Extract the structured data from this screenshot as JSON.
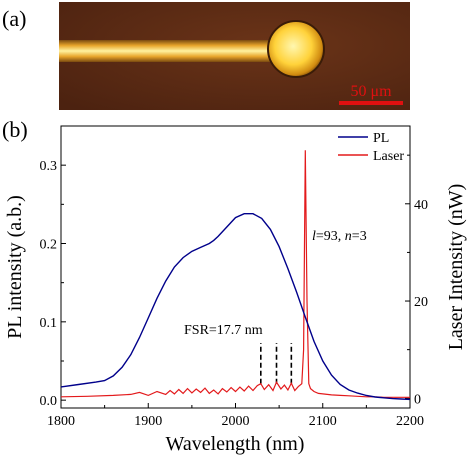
{
  "panel_a": {
    "label": "(a)",
    "scale_bar_label": "50 μm",
    "colors": {
      "background": "#5a2a14",
      "fiber": "#f2b431",
      "sphere": "#ffd23a",
      "scale_bar": "#e01010"
    }
  },
  "panel_b": {
    "label": "(b)"
  },
  "chart_data": {
    "type": "line",
    "title": "",
    "xlabel": "Wavelength (nm)",
    "ylabel_left": "PL intensity (a.b.)",
    "ylabel_right": "Laser Intensity (nW)",
    "xlim": [
      1800,
      2200
    ],
    "ylim_left": [
      -0.01,
      0.35
    ],
    "ylim_right": [
      -2,
      56
    ],
    "x_ticks": [
      1800,
      1900,
      2000,
      2100,
      2200
    ],
    "y_left_ticks": [
      "0.0",
      "0.1",
      "0.2",
      "0.3"
    ],
    "y_right_ticks": [
      "0",
      "20",
      "40"
    ],
    "legend_position": "top-right",
    "annotations": {
      "mode_label_l": "l",
      "mode_label_rest": "=93, ",
      "mode_label_n": "n",
      "mode_label_end": "=3",
      "fsr_label": "FSR=17.7 nm",
      "fsr_lines_x": [
        2029,
        2047,
        2064
      ]
    },
    "series": [
      {
        "name": "PL",
        "axis": "left",
        "color": "#00008b",
        "x": [
          1800,
          1820,
          1840,
          1850,
          1860,
          1870,
          1880,
          1890,
          1900,
          1910,
          1920,
          1930,
          1940,
          1950,
          1960,
          1970,
          1975,
          1980,
          1990,
          2000,
          2010,
          2020,
          2030,
          2040,
          2050,
          2060,
          2070,
          2080,
          2090,
          2100,
          2110,
          2120,
          2130,
          2140,
          2150,
          2160,
          2170,
          2180,
          2190,
          2200
        ],
        "y": [
          0.017,
          0.02,
          0.023,
          0.025,
          0.031,
          0.042,
          0.058,
          0.08,
          0.105,
          0.13,
          0.152,
          0.17,
          0.182,
          0.19,
          0.195,
          0.2,
          0.204,
          0.209,
          0.221,
          0.233,
          0.238,
          0.238,
          0.232,
          0.218,
          0.196,
          0.168,
          0.138,
          0.106,
          0.075,
          0.05,
          0.032,
          0.02,
          0.013,
          0.009,
          0.006,
          0.004,
          0.003,
          0.002,
          0.0015,
          0.001
        ]
      },
      {
        "name": "Laser",
        "axis": "right",
        "color": "#e31a1c",
        "x": [
          1800,
          1830,
          1860,
          1880,
          1890,
          1900,
          1910,
          1920,
          1925,
          1930,
          1935,
          1940,
          1945,
          1950,
          1955,
          1960,
          1965,
          1970,
          1975,
          1980,
          1985,
          1990,
          1995,
          2000,
          2005,
          2010,
          2015,
          2020,
          2025,
          2029,
          2033,
          2038,
          2043,
          2047,
          2052,
          2056,
          2060,
          2064,
          2068,
          2072,
          2076,
          2078,
          2080,
          2082,
          2084,
          2086,
          2090,
          2095,
          2100,
          2110,
          2120,
          2130,
          2140,
          2150,
          2160,
          2170,
          2180,
          2190,
          2200
        ],
        "y": [
          0.3,
          0.4,
          0.6,
          0.8,
          1.2,
          0.6,
          1.4,
          0.8,
          1.6,
          0.9,
          1.8,
          1.0,
          2.0,
          1.1,
          1.9,
          1.2,
          2.1,
          1.0,
          1.7,
          0.9,
          2.0,
          1.3,
          2.2,
          1.4,
          2.3,
          1.5,
          2.5,
          1.6,
          2.6,
          3.0,
          1.8,
          2.8,
          1.6,
          3.3,
          1.9,
          2.7,
          1.7,
          3.1,
          1.6,
          2.4,
          3.0,
          10.0,
          51.0,
          20.0,
          3.0,
          2.0,
          1.4,
          1.0,
          0.9,
          0.7,
          0.6,
          0.5,
          0.4,
          0.3,
          0.3,
          0.2,
          0.2,
          0.2,
          0.2
        ]
      }
    ]
  }
}
